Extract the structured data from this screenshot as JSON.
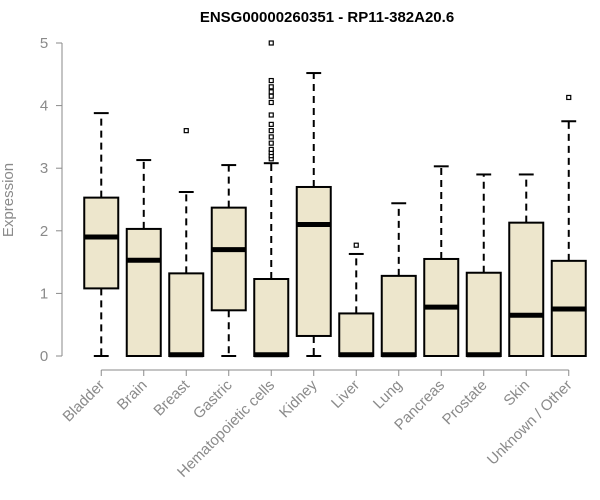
{
  "chart_data": {
    "type": "box",
    "title": "ENSG00000260351 - RP11-382A20.6",
    "ylabel": "Expression",
    "xlabel": "",
    "ylim": [
      0,
      5
    ],
    "yticks": [
      0,
      1,
      2,
      3,
      4,
      5
    ],
    "box_color": "#ede6cc",
    "categories": [
      "Bladder",
      "Brain",
      "Breast",
      "Gastric",
      "Hematopoietic cells",
      "Kidney",
      "Liver",
      "Lung",
      "Pancreas",
      "Prostate",
      "Skin",
      "Unknown / Other"
    ],
    "boxes": [
      {
        "min": 0.0,
        "q1": 1.08,
        "median": 1.9,
        "q3": 2.53,
        "max": 3.88,
        "outliers": []
      },
      {
        "min": 0.0,
        "q1": 0.0,
        "median": 1.53,
        "q3": 2.03,
        "max": 3.13,
        "outliers": []
      },
      {
        "min": 0.0,
        "q1": 0.0,
        "median": 0.02,
        "q3": 1.32,
        "max": 2.62,
        "outliers": [
          3.6
        ]
      },
      {
        "min": 0.0,
        "q1": 0.73,
        "median": 1.7,
        "q3": 2.37,
        "max": 3.05,
        "outliers": []
      },
      {
        "min": 0.0,
        "q1": 0.0,
        "median": 0.02,
        "q3": 1.23,
        "max": 3.08,
        "outliers": [
          3.15,
          3.2,
          3.25,
          3.3,
          3.4,
          3.5,
          3.6,
          3.7,
          3.85,
          4.05,
          4.15,
          4.22,
          4.3,
          4.4,
          5.0
        ]
      },
      {
        "min": 0.0,
        "q1": 0.32,
        "median": 2.1,
        "q3": 2.7,
        "max": 4.52,
        "outliers": []
      },
      {
        "min": 0.0,
        "q1": 0.0,
        "median": 0.02,
        "q3": 0.68,
        "max": 1.63,
        "outliers": [
          1.77
        ]
      },
      {
        "min": 0.0,
        "q1": 0.0,
        "median": 0.02,
        "q3": 1.28,
        "max": 2.44,
        "outliers": []
      },
      {
        "min": 0.0,
        "q1": 0.0,
        "median": 0.78,
        "q3": 1.55,
        "max": 3.03,
        "outliers": []
      },
      {
        "min": 0.0,
        "q1": 0.0,
        "median": 0.02,
        "q3": 1.33,
        "max": 2.9,
        "outliers": []
      },
      {
        "min": 0.0,
        "q1": 0.0,
        "median": 0.65,
        "q3": 2.13,
        "max": 2.9,
        "outliers": []
      },
      {
        "min": 0.0,
        "q1": 0.0,
        "median": 0.75,
        "q3": 1.52,
        "max": 3.75,
        "outliers": [
          4.13
        ]
      }
    ],
    "grid": false,
    "legend": "none"
  }
}
